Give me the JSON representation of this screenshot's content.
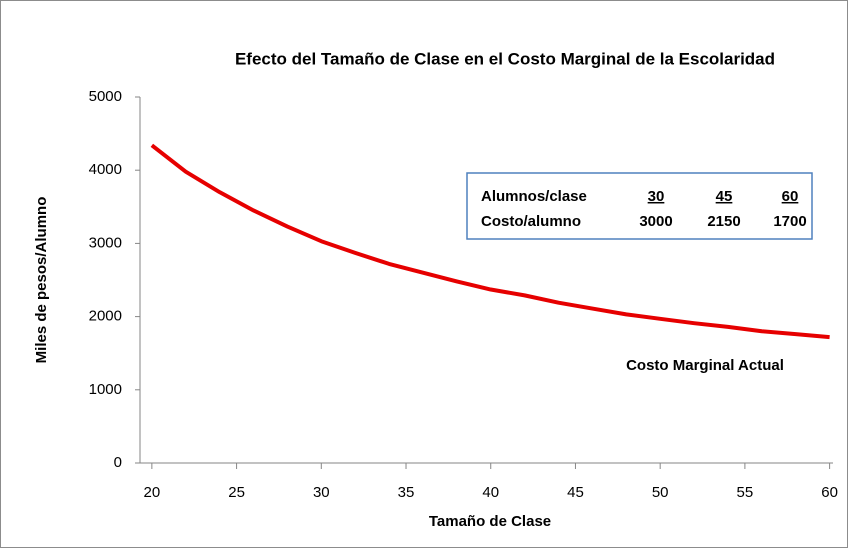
{
  "chart_data": {
    "type": "line",
    "title": "Efecto del Tamaño de Clase en el Costo Marginal de la Escolaridad",
    "x_label": "Tamaño de Clase",
    "y_label": "Miles de pesos/Alumno",
    "x": [
      20,
      22,
      24,
      26,
      28,
      30,
      32,
      34,
      36,
      38,
      40,
      42,
      44,
      46,
      48,
      50,
      52,
      54,
      56,
      58,
      60
    ],
    "series": [
      {
        "name": "Costo Marginal Actual",
        "color": "#e60000",
        "values": [
          4340,
          3980,
          3700,
          3450,
          3230,
          3030,
          2870,
          2720,
          2600,
          2480,
          2370,
          2290,
          2190,
          2110,
          2030,
          1970,
          1910,
          1860,
          1800,
          1760,
          1720
        ]
      }
    ],
    "xlim": [
      19.3,
      60.2
    ],
    "xticks": [
      20,
      25,
      30,
      35,
      40,
      45,
      50,
      55,
      60
    ],
    "ylim": [
      0,
      5000
    ],
    "yticks": [
      0,
      1000,
      2000,
      3000,
      4000,
      5000
    ],
    "grid": false,
    "note_table": {
      "rows": [
        [
          "Alumnos/clase",
          "30",
          "45",
          "60"
        ],
        [
          "Costo/alumno",
          "3000",
          "2150",
          "1700"
        ]
      ]
    }
  }
}
